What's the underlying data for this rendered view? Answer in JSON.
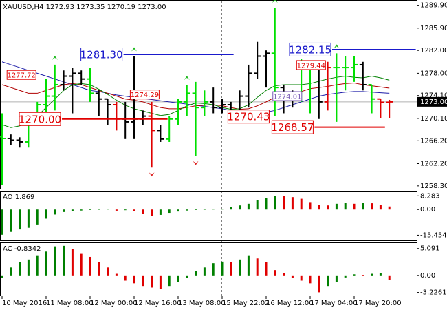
{
  "chart_data": [
    {
      "type": "ohlc",
      "title": "XAUUSD,H4  1272.93 1273.35 1270.19 1273.00",
      "categories": [
        "10 May 2016",
        null,
        null,
        null,
        null,
        "11 May 08:00",
        null,
        null,
        null,
        null,
        "12 May 00:00",
        null,
        null,
        null,
        null,
        "12 May 16:00",
        null,
        null,
        null,
        null,
        "13 May 08:00",
        null,
        null,
        null,
        null,
        "15 May 22:02",
        null,
        null,
        null,
        null,
        "16 May 12:00",
        null,
        null,
        null,
        null,
        "17 May 04:00",
        null,
        null,
        null,
        null,
        "17 May 20:00",
        null,
        null,
        null,
        null
      ],
      "open": [
        1266.9,
        1266.6,
        1266.3,
        1266.0,
        1270,
        1272.5,
        1274,
        1276,
        1277.5,
        1278,
        1277,
        1274.5,
        1273.5,
        1272.5,
        1270,
        1269.5,
        1270,
        1270.5,
        1268,
        1266.5,
        1270,
        1273,
        1274.5,
        1272,
        1273,
        1272,
        1272.5,
        1271.5,
        1274,
        1278,
        1281,
        1281.5,
        1275.5,
        1274,
        1273.5,
        1279,
        1279.5,
        1273,
        1279,
        1279,
        1279,
        1279.5,
        1276,
        1273.5,
        1272.93
      ],
      "high": [
        1271,
        1267.3,
        1266.8,
        1271,
        1273,
        1277,
        1279.5,
        1278.5,
        1279,
        1278.5,
        1279,
        1275,
        1273.5,
        1273,
        1273,
        1281,
        1271.5,
        1273,
        1269,
        1270.5,
        1273.5,
        1276,
        1276.5,
        1275,
        1275.5,
        1273.5,
        1273,
        1275,
        1279.5,
        1283.5,
        1282,
        1289.5,
        1276,
        1275,
        1280.5,
        1280,
        1279.5,
        1280,
        1281.5,
        1281,
        1281,
        1280,
        1276,
        1273.5,
        1273.35
      ],
      "low": [
        1258.5,
        1265.5,
        1265,
        1265,
        1269.5,
        1271,
        1271.5,
        1275,
        1271,
        1276,
        1273,
        1270.5,
        1269,
        1268,
        1266.5,
        1266.5,
        1269,
        1261.5,
        1266,
        1266,
        1269,
        1270.5,
        1263.5,
        1270.5,
        1271,
        1271,
        1270.5,
        1270.5,
        1272,
        1277,
        1275.5,
        1270.5,
        1271,
        1272,
        1273,
        1271,
        1270,
        1271.5,
        1269.5,
        1275,
        1276.5,
        1275,
        1271,
        1270.2,
        1270.19
      ],
      "close": [
        1266.6,
        1266.3,
        1266.0,
        1270,
        1272.5,
        1274,
        1276,
        1277.5,
        1278,
        1277,
        1274.5,
        1273.5,
        1272.5,
        1270,
        1269.5,
        1270,
        1270.5,
        1268,
        1266.5,
        1270,
        1273,
        1274.5,
        1272,
        1273,
        1272,
        1272.5,
        1271.5,
        1274,
        1278,
        1281,
        1281.5,
        1275.5,
        1274,
        1273.5,
        1279,
        1279.5,
        1273,
        1279,
        1279,
        1279,
        1279.5,
        1276,
        1273.5,
        1272.93,
        1273.0
      ],
      "bar_colors": [
        "#00e000",
        "#000000",
        "#000000",
        "#00e000",
        "#00e000",
        "#00e000",
        "#00e000",
        "#000000",
        "#000000",
        "#000000",
        "#00e000",
        "#000000",
        "#000000",
        "#e00000",
        "#000000",
        "#000000",
        "#000000",
        "#e00000",
        "#000000",
        "#00e000",
        "#00e000",
        "#00e000",
        "#00e000",
        "#00e000",
        "#000000",
        "#000000",
        "#000000",
        "#000000",
        "#000000",
        "#000000",
        "#000000",
        "#00e000",
        "#000000",
        "#000000",
        "#00e000",
        "#00e000",
        "#000000",
        "#e00000",
        "#00e000",
        "#00e000",
        "#00e000",
        "#000000",
        "#00e000",
        "#e00000",
        "#e00000"
      ],
      "series": [
        {
          "color": "#1c1ca8",
          "values": [
            1280,
            1279.5,
            1279,
            1278.5,
            1278,
            1277.5,
            1277,
            1276.5,
            1276,
            1275.5,
            1275,
            1274.8,
            1274.5,
            1274.2,
            1274,
            1273.8,
            1273.6,
            1273.4,
            1273.2,
            1273,
            1272.8,
            1272.6,
            1272.4,
            1272.2,
            1272,
            1271.8,
            1271.5,
            1271.2,
            1271,
            1271,
            1271.2,
            1271.5,
            1272,
            1272.5,
            1273,
            1273.5,
            1274,
            1274.3,
            1274.5,
            1274.7,
            1274.8,
            1274.8,
            1274.7,
            1274.6,
            1274.5
          ]
        },
        {
          "color": "#b00000",
          "values": [
            1276,
            1275.5,
            1275,
            1274.5,
            1274.5,
            1275,
            1275.5,
            1276,
            1276.2,
            1276,
            1275.5,
            1275,
            1274.5,
            1274,
            1273.5,
            1273.3,
            1273,
            1272.5,
            1272,
            1271.8,
            1271.8,
            1272,
            1272.3,
            1272.4,
            1272.5,
            1272.3,
            1272,
            1271.7,
            1271.8,
            1272.3,
            1273,
            1273.8,
            1274.2,
            1274.5,
            1274.8,
            1275.3,
            1275.5,
            1275.7,
            1276,
            1276.2,
            1276.3,
            1276,
            1275.8,
            1275.6,
            1275.4
          ]
        },
        {
          "color": "#008000",
          "values": [
            1269,
            1268.5,
            1268.8,
            1269.5,
            1270.5,
            1272,
            1273.5,
            1275,
            1276,
            1276.2,
            1276,
            1275.2,
            1274.3,
            1273.3,
            1272.4,
            1271.8,
            1271.4,
            1271,
            1270.6,
            1270.8,
            1271.5,
            1272.3,
            1272.8,
            1272.7,
            1272.5,
            1272,
            1271.7,
            1271.8,
            1272.5,
            1273.8,
            1275,
            1275.8,
            1276,
            1276,
            1276,
            1276.2,
            1276.6,
            1277,
            1277.3,
            1277.5,
            1277.3,
            1277.2,
            1277.5,
            1277.2,
            1276.8
          ]
        }
      ],
      "levels": [
        {
          "label": "1281.30",
          "value": 1281.3,
          "color": "#1a1acc",
          "size": "big",
          "start": 13.8,
          "end": 26.3
        },
        {
          "label": "1282.15",
          "value": 1282.15,
          "color": "#1a1acc",
          "size": "big",
          "start": 37.5,
          "end": 47
        },
        {
          "label": "1270.00",
          "value": 1270,
          "color": "#e00000",
          "size": "big",
          "start": 6.8,
          "end": 18.8
        },
        {
          "label": "1270.43",
          "value": 1270.43,
          "color": "#e00000",
          "size": "big",
          "start": 30.5,
          "end": 30.5
        },
        {
          "label": "1268.57",
          "value": 1268.57,
          "color": "#e00000",
          "size": "big",
          "start": 35.5,
          "end": 43.5
        },
        {
          "label": "1277.72",
          "value": 1277.72,
          "color": "#e00000",
          "size": "small",
          "start": 4,
          "end": 4
        },
        {
          "label": "1274.29",
          "value": 1274.29,
          "color": "#e00000",
          "size": "small",
          "start": 18,
          "end": 18
        },
        {
          "label": "1274.01",
          "value": 1274.01,
          "color": "#7a5cb8",
          "size": "small",
          "start": 34.2,
          "end": 34.2
        },
        {
          "label": "1279.44",
          "value": 1279.44,
          "color": "#e00000",
          "size": "small",
          "start": 36.9,
          "end": 36.9
        }
      ],
      "fractals_up": [
        6,
        15,
        21,
        31,
        38
      ],
      "fractals_down": [
        17,
        22
      ],
      "fractal_up_color": "#22bb22",
      "fractal_down_color": "#dd2222",
      "last": {
        "value": 1273,
        "label": "1273.00"
      },
      "ylim": [
        1257.8,
        1290.7
      ],
      "yticks": [
        {
          "value": 1289.9,
          "label": "1289.90"
        },
        {
          "value": 1285.9,
          "label": "1285.90"
        },
        {
          "value": 1282,
          "label": "1282.00"
        },
        {
          "value": 1278,
          "label": "1278.00"
        },
        {
          "value": 1274.1,
          "label": "1274.10"
        },
        {
          "value": 1270.1,
          "label": "1270.10"
        },
        {
          "value": 1266.2,
          "label": "1266.20"
        },
        {
          "value": 1262.2,
          "label": "1262.20"
        },
        {
          "value": 1258.3,
          "label": "1258.30"
        }
      ]
    },
    {
      "type": "histogram",
      "title": "AO 1.869",
      "up_color": "#008000",
      "down_color": "#e00000",
      "values": [
        -15.2,
        -13.5,
        -12,
        -11,
        -9,
        -5.5,
        -3,
        -1.5,
        -1,
        -0.6,
        -0.3,
        -0.2,
        -0.1,
        -0.7,
        -0.4,
        -1,
        -2.5,
        -3.8,
        -3.2,
        -2,
        -1.2,
        -0.6,
        -0.3,
        -0.2,
        -0.1,
        0.3,
        1.5,
        2.5,
        3.5,
        5.5,
        7,
        8.2,
        8,
        7.5,
        6.5,
        4.5,
        3,
        2.5,
        3.5,
        4,
        3.5,
        4.2,
        3.8,
        3,
        1.869
      ],
      "ylim": [
        -18.6,
        10.9
      ],
      "yticks": [
        8.283,
        {
          "value": 0,
          "label": "0.00"
        },
        -15.454
      ]
    },
    {
      "type": "histogram",
      "title": "AC -0.8342",
      "up_color": "#008000",
      "down_color": "#e00000",
      "values": [
        -0.5,
        1.5,
        2.5,
        3,
        3.8,
        4.5,
        5.5,
        5.6,
        5,
        4.2,
        3.5,
        2.5,
        1.5,
        0.3,
        -1,
        -1.5,
        -2,
        -2.3,
        -2.5,
        -2,
        -1.2,
        -0.5,
        0.8,
        1.5,
        2.3,
        2.6,
        2.5,
        3,
        3.8,
        3.2,
        2.5,
        1,
        0.5,
        -0.5,
        -1,
        -1.5,
        -3.2,
        -2,
        -1.2,
        -0.4,
        0.2,
        0.1,
        0.3,
        0.4,
        -0.8342
      ],
      "ylim": [
        -3.8,
        6.1
      ],
      "yticks": [
        5.091,
        {
          "value": 0,
          "label": "0.00"
        },
        -3.2261
      ]
    }
  ]
}
